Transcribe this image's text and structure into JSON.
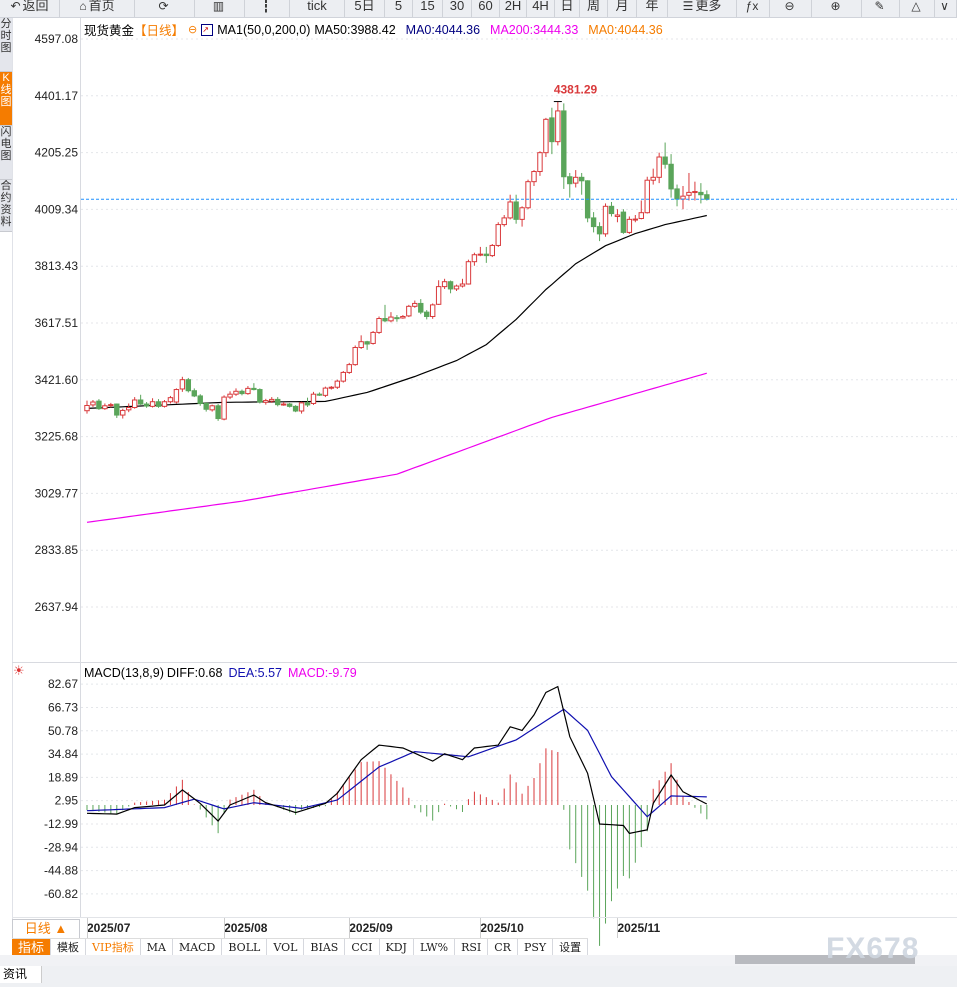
{
  "toolbar": {
    "items": [
      {
        "label": "返回",
        "icon": "back-arrow-icon",
        "glyph": "↶"
      },
      {
        "label": "首页",
        "icon": "home-icon",
        "glyph": "⌂"
      },
      {
        "label": "",
        "icon": "refresh-icon",
        "glyph": "⟳"
      },
      {
        "label": "",
        "icon": "bar-chart-icon",
        "glyph": "▥"
      },
      {
        "label": "",
        "icon": "candlestick-icon",
        "glyph": "┇"
      },
      {
        "label": "tick",
        "icon": "",
        "glyph": ""
      },
      {
        "label": "5日",
        "icon": "",
        "glyph": ""
      },
      {
        "label": "5",
        "icon": "",
        "glyph": ""
      },
      {
        "label": "15",
        "icon": "",
        "glyph": ""
      },
      {
        "label": "30",
        "icon": "",
        "glyph": ""
      },
      {
        "label": "60",
        "icon": "",
        "glyph": ""
      },
      {
        "label": "2H",
        "icon": "",
        "glyph": ""
      },
      {
        "label": "4H",
        "icon": "",
        "glyph": ""
      },
      {
        "label": "日",
        "icon": "",
        "glyph": ""
      },
      {
        "label": "周",
        "icon": "",
        "glyph": ""
      },
      {
        "label": "月",
        "icon": "",
        "glyph": ""
      },
      {
        "label": "年",
        "icon": "",
        "glyph": ""
      },
      {
        "label": "更多",
        "icon": "menu-icon",
        "glyph": "☰"
      },
      {
        "label": "",
        "icon": "formula-icon",
        "glyph": "ƒx"
      },
      {
        "label": "",
        "icon": "zoom-out-icon",
        "glyph": "⊖"
      },
      {
        "label": "",
        "icon": "zoom-in-icon",
        "glyph": "⊕"
      },
      {
        "label": "",
        "icon": "pen-icon",
        "glyph": "✎"
      },
      {
        "label": "",
        "icon": "triangle-icon",
        "glyph": "△"
      },
      {
        "label": "",
        "icon": "chevron-down-icon",
        "glyph": "∨"
      }
    ]
  },
  "side_tabs": [
    "分时图",
    "K线图",
    "闪电图",
    "合约资料"
  ],
  "side_active": 1,
  "title": {
    "symbol": "现货黄金",
    "period": "【日线】",
    "ma_name": "MA1(50,0,200,0)",
    "ma50": "MA50:3988.42",
    "ma0": "MA0:4044.36",
    "ma200": "MA200:3444.33",
    "ma0b": "MA0:4044.36"
  },
  "colors": {
    "up": "#d9393b",
    "down": "#5aa55a",
    "ma50": "#000000",
    "ma200": "#ee00ee",
    "ma0": "#000080",
    "ma0b": "#f57c00",
    "accent": "#f57c00",
    "price_line": "#1e90ff",
    "diff": "#000000",
    "dea": "#1010b0",
    "macd": "#ee00ee"
  },
  "chart_data": [
    {
      "type": "candlestick",
      "y_ticks": [
        "4597.08",
        "4401.17",
        "4205.25",
        "4009.34",
        "3813.43",
        "3617.51",
        "3421.60",
        "3225.68",
        "3029.77",
        "2833.85",
        "2637.94"
      ],
      "ylim": [
        2637.94,
        4597.08
      ],
      "high_label": "4381.29",
      "last_price": 4044.36,
      "month_ticks": [
        {
          "label": "2025/07",
          "i": 0
        },
        {
          "label": "2025/08",
          "i": 23
        },
        {
          "label": "2025/09",
          "i": 44
        },
        {
          "label": "2025/10",
          "i": 66
        },
        {
          "label": "2025/11",
          "i": 89
        }
      ],
      "ohlc": [
        [
          3315,
          3350,
          3305,
          3333
        ],
        [
          3335,
          3352,
          3328,
          3345
        ],
        [
          3348,
          3355,
          3318,
          3322
        ],
        [
          3322,
          3340,
          3318,
          3332
        ],
        [
          3334,
          3342,
          3326,
          3336
        ],
        [
          3338,
          3340,
          3290,
          3300
        ],
        [
          3300,
          3322,
          3288,
          3316
        ],
        [
          3318,
          3340,
          3310,
          3326
        ],
        [
          3326,
          3362,
          3322,
          3352
        ],
        [
          3352,
          3370,
          3335,
          3338
        ],
        [
          3338,
          3345,
          3325,
          3331
        ],
        [
          3330,
          3358,
          3326,
          3346
        ],
        [
          3346,
          3355,
          3325,
          3330
        ],
        [
          3330,
          3352,
          3326,
          3346
        ],
        [
          3346,
          3366,
          3340,
          3360
        ],
        [
          3345,
          3392,
          3340,
          3388
        ],
        [
          3390,
          3432,
          3380,
          3422
        ],
        [
          3422,
          3428,
          3378,
          3384
        ],
        [
          3384,
          3392,
          3362,
          3366
        ],
        [
          3366,
          3372,
          3332,
          3340
        ],
        [
          3340,
          3345,
          3312,
          3320
        ],
        [
          3318,
          3336,
          3312,
          3332
        ],
        [
          3332,
          3338,
          3280,
          3288
        ],
        [
          3286,
          3368,
          3282,
          3362
        ],
        [
          3362,
          3382,
          3355,
          3372
        ],
        [
          3372,
          3392,
          3366,
          3382
        ],
        [
          3382,
          3388,
          3368,
          3374
        ],
        [
          3374,
          3400,
          3370,
          3392
        ],
        [
          3392,
          3410,
          3385,
          3388
        ],
        [
          3388,
          3392,
          3340,
          3345
        ],
        [
          3344,
          3356,
          3336,
          3350
        ],
        [
          3348,
          3362,
          3342,
          3354
        ],
        [
          3354,
          3362,
          3330,
          3336
        ],
        [
          3336,
          3345,
          3332,
          3338
        ],
        [
          3338,
          3342,
          3326,
          3330
        ],
        [
          3330,
          3334,
          3310,
          3314
        ],
        [
          3314,
          3346,
          3305,
          3342
        ],
        [
          3342,
          3360,
          3328,
          3335
        ],
        [
          3340,
          3380,
          3335,
          3372
        ],
        [
          3372,
          3378,
          3366,
          3370
        ],
        [
          3368,
          3398,
          3362,
          3393
        ],
        [
          3393,
          3400,
          3388,
          3396
        ],
        [
          3396,
          3422,
          3390,
          3417
        ],
        [
          3417,
          3452,
          3412,
          3447
        ],
        [
          3447,
          3480,
          3442,
          3474
        ],
        [
          3474,
          3540,
          3470,
          3533
        ],
        [
          3533,
          3575,
          3528,
          3553
        ],
        [
          3553,
          3556,
          3525,
          3545
        ],
        [
          3547,
          3590,
          3543,
          3585
        ],
        [
          3585,
          3640,
          3580,
          3633
        ],
        [
          3633,
          3680,
          3620,
          3625
        ],
        [
          3625,
          3655,
          3620,
          3638
        ],
        [
          3636,
          3645,
          3622,
          3635
        ],
        [
          3635,
          3645,
          3632,
          3640
        ],
        [
          3642,
          3680,
          3638,
          3675
        ],
        [
          3675,
          3695,
          3670,
          3685
        ],
        [
          3685,
          3700,
          3648,
          3655
        ],
        [
          3655,
          3662,
          3630,
          3640
        ],
        [
          3640,
          3685,
          3632,
          3680
        ],
        [
          3682,
          3765,
          3680,
          3743
        ],
        [
          3743,
          3770,
          3735,
          3760
        ],
        [
          3760,
          3764,
          3720,
          3735
        ],
        [
          3735,
          3750,
          3728,
          3745
        ],
        [
          3745,
          3770,
          3740,
          3752
        ],
        [
          3752,
          3836,
          3750,
          3829
        ],
        [
          3829,
          3860,
          3815,
          3853
        ],
        [
          3853,
          3880,
          3848,
          3855
        ],
        [
          3855,
          3880,
          3825,
          3850
        ],
        [
          3850,
          3890,
          3845,
          3885
        ],
        [
          3885,
          3965,
          3880,
          3957
        ],
        [
          3957,
          3990,
          3950,
          3980
        ],
        [
          3980,
          4060,
          3975,
          4035
        ],
        [
          4035,
          4060,
          3960,
          3975
        ],
        [
          3975,
          4020,
          3950,
          4015
        ],
        [
          4015,
          4112,
          4010,
          4105
        ],
        [
          4105,
          4145,
          4090,
          4140
        ],
        [
          4140,
          4210,
          4125,
          4205
        ],
        [
          4205,
          4325,
          4190,
          4320
        ],
        [
          4325,
          4360,
          4200,
          4243
        ],
        [
          4243,
          4381.29,
          4230,
          4349
        ],
        [
          4349,
          4375,
          4080,
          4122
        ],
        [
          4122,
          4135,
          4050,
          4098
        ],
        [
          4100,
          4145,
          4085,
          4120
        ],
        [
          4120,
          4135,
          4060,
          4108
        ],
        [
          4108,
          4110,
          3965,
          3980
        ],
        [
          3980,
          4000,
          3930,
          3950
        ],
        [
          3950,
          3965,
          3900,
          3925
        ],
        [
          3925,
          4030,
          3915,
          4020
        ],
        [
          4020,
          4035,
          3985,
          3995
        ],
        [
          3985,
          4010,
          3965,
          3990
        ],
        [
          4000,
          4010,
          3925,
          3930
        ],
        [
          3930,
          3985,
          3925,
          3975
        ],
        [
          3975,
          3990,
          3965,
          3976
        ],
        [
          3978,
          4040,
          3975,
          3998
        ],
        [
          3998,
          4122,
          3995,
          4110
        ],
        [
          4110,
          4150,
          4095,
          4120
        ],
        [
          4120,
          4205,
          4100,
          4190
        ],
        [
          4190,
          4240,
          4150,
          4165
        ],
        [
          4165,
          4200,
          4050,
          4080
        ],
        [
          4080,
          4095,
          4020,
          4045
        ],
        [
          4045,
          4090,
          4010,
          4055
        ],
        [
          4058,
          4135,
          4040,
          4068
        ],
        [
          4070,
          4105,
          4040,
          4071
        ],
        [
          4068,
          4100,
          4030,
          4060
        ],
        [
          4060,
          4075,
          4040,
          4044.36
        ]
      ],
      "ma50": [
        [
          0,
          3323
        ],
        [
          23,
          3344
        ],
        [
          40,
          3347
        ],
        [
          47,
          3378
        ],
        [
          55,
          3433
        ],
        [
          62,
          3488
        ],
        [
          67,
          3543
        ],
        [
          72,
          3630
        ],
        [
          77,
          3733
        ],
        [
          82,
          3822
        ],
        [
          87,
          3884
        ],
        [
          92,
          3926
        ],
        [
          97,
          3957
        ],
        [
          104,
          3988.42
        ]
      ],
      "ma200": [
        [
          0,
          2930
        ],
        [
          26,
          3003
        ],
        [
          52,
          3096
        ],
        [
          78,
          3292
        ],
        [
          104,
          3444.33
        ]
      ]
    },
    {
      "type": "macd",
      "title": "MACD(13,8,9)",
      "diff_label": "DIFF:0.68",
      "dea_label": "DEA:5.57",
      "macd_label": "MACD:-9.79",
      "y_ticks": [
        "82.67",
        "66.73",
        "50.78",
        "34.84",
        "18.89",
        "2.95",
        "-12.99",
        "-28.94",
        "-44.88",
        "-60.82"
      ],
      "ylim": [
        -60.82,
        82.67
      ],
      "diff": [
        [
          0,
          -5.7
        ],
        [
          5,
          -6.2
        ],
        [
          8,
          -1.8
        ],
        [
          13,
          0
        ],
        [
          16,
          10.3
        ],
        [
          19,
          1.1
        ],
        [
          22,
          -11
        ],
        [
          24,
          0
        ],
        [
          28,
          6.8
        ],
        [
          30,
          1.6
        ],
        [
          35,
          -5.2
        ],
        [
          40,
          1.1
        ],
        [
          42,
          8
        ],
        [
          46,
          31
        ],
        [
          49,
          41
        ],
        [
          53,
          39
        ],
        [
          58,
          30
        ],
        [
          60,
          35
        ],
        [
          63,
          31
        ],
        [
          65,
          39
        ],
        [
          69,
          41
        ],
        [
          71,
          53.5
        ],
        [
          73,
          51
        ],
        [
          75,
          61.6
        ],
        [
          77,
          77
        ],
        [
          79,
          81
        ],
        [
          81,
          46.7
        ],
        [
          84,
          21.7
        ],
        [
          86,
          -13
        ],
        [
          90,
          -14
        ],
        [
          91,
          -19.4
        ],
        [
          94,
          -17
        ],
        [
          95,
          1.1
        ],
        [
          98,
          20.5
        ],
        [
          100,
          9
        ],
        [
          104,
          0.68
        ]
      ],
      "dea": [
        [
          0,
          -3.9
        ],
        [
          13,
          -1.8
        ],
        [
          18,
          4
        ],
        [
          23,
          -2.7
        ],
        [
          28,
          1.6
        ],
        [
          36,
          -2.3
        ],
        [
          42,
          3.4
        ],
        [
          49,
          26
        ],
        [
          55,
          36.5
        ],
        [
          64,
          33
        ],
        [
          72,
          44.5
        ],
        [
          80,
          65.5
        ],
        [
          84,
          51
        ],
        [
          88,
          19.4
        ],
        [
          94,
          -8
        ],
        [
          98,
          6.2
        ],
        [
          104,
          5.57
        ]
      ]
    }
  ],
  "date_bar": {
    "period_button": "日线 ▲"
  },
  "indicator_tabs": [
    "指标",
    "模板",
    "VIP指标",
    "MA",
    "MACD",
    "BOLL",
    "VOL",
    "BIAS",
    "CCI",
    "KDJ",
    "LW%",
    "RSI",
    "CR",
    "PSY",
    "设置"
  ],
  "watermark": "FX678",
  "bottom": {
    "news_tab": "资讯"
  }
}
